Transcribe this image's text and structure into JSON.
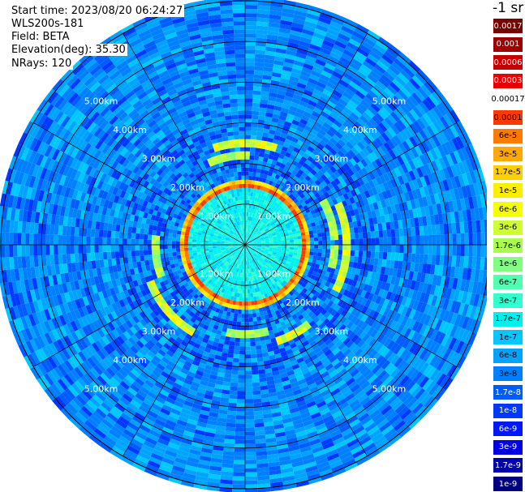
{
  "header": {
    "start_time": "Start time: 2023/08/20 06:24:27",
    "instrument": "WLS200s-181",
    "field": "Field: BETA",
    "elevation": "Elevation(deg): 35.30",
    "nrays": "NRays: 120"
  },
  "colorbar": {
    "unit": "-1 sr",
    "labels": [
      "0.0017",
      "0.001",
      "0.0006",
      "0.0003",
      "0.00017",
      "0.0001",
      "6e-5",
      "3e-5",
      "1.7e-5",
      "1e-5",
      "6e-6",
      "3e-6",
      "1.7e-6",
      "1e-6",
      "6e-7",
      "3e-7",
      "1.7e-7",
      "1e-7",
      "6e-8",
      "3e-8",
      "1.7e-8",
      "1e-8",
      "6e-9",
      "3e-9",
      "1.7e-9",
      "1e-9"
    ],
    "colors": [
      "#7a0000",
      "#9c0000",
      "#c40000",
      "#e80000",
      "#ffffff",
      "#ff3a00",
      "#ff7a00",
      "#ffa800",
      "#ffd000",
      "#ffee00",
      "#f6ff00",
      "#d0ff30",
      "#a8ff50",
      "#80ff80",
      "#50ffb0",
      "#30ffd0",
      "#00f0f0",
      "#00c8ff",
      "#00a4ff",
      "#0080ff",
      "#005cff",
      "#0038ff",
      "#0018ff",
      "#0000e0",
      "#0000b0",
      "#000080"
    ],
    "label_colors": [
      "#ffffff",
      "#ffffff",
      "#ffffff",
      "#ffffff",
      "#000000",
      "#000000",
      "#000000",
      "#000000",
      "#000000",
      "#000000",
      "#000000",
      "#000000",
      "#000000",
      "#000000",
      "#000000",
      "#000000",
      "#000000",
      "#000000",
      "#000000",
      "#000000",
      "#ffffff",
      "#ffffff",
      "#ffffff",
      "#ffffff",
      "#ffffff",
      "#ffffff"
    ]
  },
  "chart_data": {
    "type": "heatmap",
    "projection": "polar",
    "field": "BETA",
    "elevation_deg": 35.3,
    "nrays": 120,
    "range_rings_km": [
      1,
      2,
      3,
      4,
      5
    ],
    "range_ring_labels": [
      "1.00km",
      "2.00km",
      "3.00km",
      "4.00km",
      "5.00km"
    ],
    "max_range_km": 6,
    "spokes_deg": [
      0,
      30,
      60,
      90,
      120,
      150,
      180,
      210,
      240,
      270,
      300,
      330
    ],
    "value_profile": [
      {
        "range_km": 0.5,
        "beta": 1.7e-07
      },
      {
        "range_km": 1.2,
        "beta": 1e-07
      },
      {
        "range_km": 1.5,
        "beta": 0.0001
      },
      {
        "range_km": 1.8,
        "beta": 1e-07
      },
      {
        "range_km": 2.6,
        "beta": 1.7e-06
      },
      {
        "range_km": 3.5,
        "beta": 3e-08
      },
      {
        "range_km": 5.0,
        "beta": 6e-08
      }
    ]
  }
}
